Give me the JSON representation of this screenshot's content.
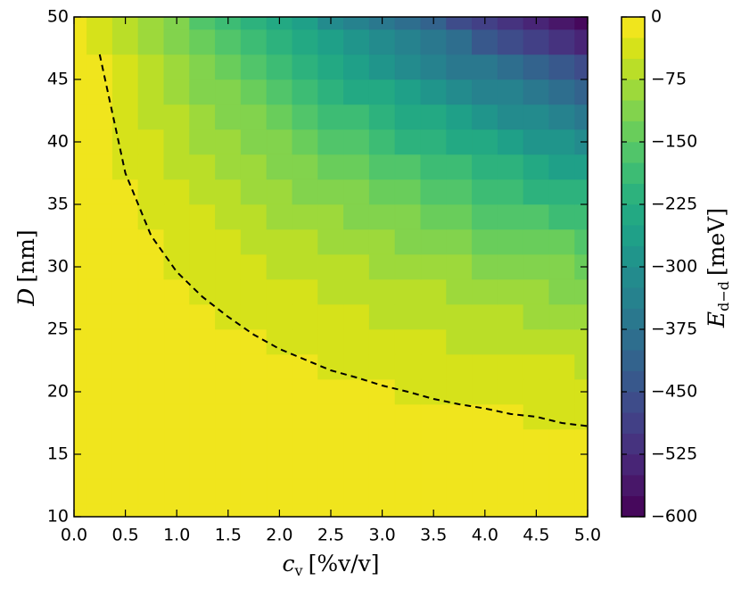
{
  "chart_data": {
    "type": "contourf",
    "xlabel": {
      "symbol": "c",
      "subscript": "v",
      "unit": "[%v/v]"
    },
    "ylabel": {
      "symbol": "D",
      "unit": "[nm]"
    },
    "colorbar_label": {
      "symbol": "E",
      "subscript": "d−d",
      "unit": "[meV]"
    },
    "xlim": [
      0,
      5
    ],
    "ylim": [
      10,
      50
    ],
    "xticks": [
      {
        "value": 0,
        "label": "0.0"
      },
      0.5,
      {
        "value": 1,
        "label": "1.0"
      },
      1.5,
      {
        "value": 2,
        "label": "2.0"
      },
      2.5,
      {
        "value": 3,
        "label": "3.0"
      },
      3.5,
      {
        "value": 4,
        "label": "4.0"
      },
      4.5,
      {
        "value": 5,
        "label": "5.0"
      }
    ],
    "yticks": [
      10,
      15,
      20,
      25,
      30,
      35,
      40,
      45,
      50
    ],
    "colorbar_ticks": [
      {
        "value": -600,
        "label": "−600"
      },
      {
        "value": -525,
        "label": "−525"
      },
      {
        "value": -450,
        "label": "−450"
      },
      {
        "value": -375,
        "label": "−375"
      },
      {
        "value": -300,
        "label": "−300"
      },
      {
        "value": -225,
        "label": "−225"
      },
      {
        "value": -150,
        "label": "−150"
      },
      {
        "value": -75,
        "label": "−75"
      },
      0
    ],
    "levels": [
      -600,
      -575,
      -550,
      -525,
      -500,
      -475,
      -450,
      -425,
      -400,
      -375,
      -350,
      -325,
      -300,
      -275,
      -250,
      -225,
      -200,
      -175,
      -150,
      -125,
      -100,
      -75,
      -50,
      -25,
      0
    ],
    "colors": [
      "#46085c",
      "#481769",
      "#482576",
      "#46337f",
      "#424086",
      "#3e4c8a",
      "#38588c",
      "#33638d",
      "#2e6e8e",
      "#2a788e",
      "#26828e",
      "#238b8d",
      "#20958b",
      "#1fa088",
      "#23a983",
      "#2db27d",
      "#3dbc74",
      "#51c56a",
      "#69cd5b",
      "#82d34d",
      "#9dd93b",
      "#bade28",
      "#d6e21a",
      "#f0e51d"
    ],
    "contour_line_level": -25,
    "x": [
      0,
      0.25,
      0.5,
      0.75,
      1,
      1.25,
      1.5,
      1.75,
      2,
      2.25,
      2.5,
      2.75,
      3,
      3.25,
      3.5,
      3.75,
      4,
      4.25,
      4.5,
      4.75,
      5
    ],
    "y": [
      10,
      12,
      14,
      16,
      18,
      20,
      22,
      24,
      26,
      28,
      30,
      32,
      34,
      36,
      38,
      40,
      42,
      44,
      46,
      48,
      50
    ],
    "z": [
      [
        0,
        0,
        0,
        -1,
        -1,
        -1,
        -1,
        -2,
        -2,
        -2,
        -2,
        -3,
        -3,
        -3,
        -3,
        -4,
        -4,
        -4,
        -4,
        -5,
        -5
      ],
      [
        0,
        0,
        -1,
        -1,
        -2,
        -2,
        -2,
        -3,
        -3,
        -4,
        -4,
        -5,
        -5,
        -5,
        -6,
        -6,
        -7,
        -7,
        -7,
        -8,
        -8
      ],
      [
        0,
        -1,
        -1,
        -2,
        -3,
        -3,
        -4,
        -5,
        -5,
        -6,
        -7,
        -7,
        -8,
        -9,
        -9,
        -10,
        -11,
        -11,
        -12,
        -13,
        -13
      ],
      [
        0,
        -1,
        -2,
        -3,
        -4,
        -5,
        -6,
        -7,
        -8,
        -9,
        -10,
        -11,
        -12,
        -13,
        -14,
        -15,
        -16,
        -17,
        -18,
        -19,
        -20
      ],
      [
        0,
        -1,
        -3,
        -4,
        -6,
        -7,
        -8,
        -10,
        -11,
        -13,
        -14,
        -15,
        -17,
        -18,
        -20,
        -21,
        -22,
        -24,
        -25,
        -27,
        -28
      ],
      [
        0,
        -2,
        -4,
        -6,
        -8,
        -10,
        -12,
        -13,
        -15,
        -17,
        -19,
        -21,
        -23,
        -25,
        -27,
        -29,
        -31,
        -33,
        -35,
        -36,
        -38
      ],
      [
        0,
        -3,
        -5,
        -8,
        -10,
        -13,
        -15,
        -18,
        -20,
        -23,
        -26,
        -28,
        -31,
        -33,
        -36,
        -38,
        -41,
        -43,
        -46,
        -49,
        -51
      ],
      [
        0,
        -3,
        -7,
        -10,
        -13,
        -17,
        -20,
        -23,
        -27,
        -30,
        -33,
        -36,
        -40,
        -43,
        -46,
        -50,
        -53,
        -56,
        -60,
        -63,
        -66
      ],
      [
        0,
        -4,
        -8,
        -13,
        -17,
        -21,
        -25,
        -30,
        -34,
        -38,
        -42,
        -46,
        -51,
        -55,
        -59,
        -63,
        -67,
        -72,
        -76,
        -80,
        -84
      ],
      [
        0,
        -5,
        -11,
        -16,
        -21,
        -26,
        -32,
        -37,
        -42,
        -47,
        -53,
        -58,
        -63,
        -68,
        -74,
        -79,
        -84,
        -90,
        -95,
        -100,
        -105
      ],
      [
        0,
        -6,
        -13,
        -19,
        -26,
        -32,
        -39,
        -45,
        -52,
        -58,
        -65,
        -71,
        -78,
        -84,
        -91,
        -97,
        -104,
        -110,
        -117,
        -123,
        -130
      ],
      [
        0,
        -8,
        -16,
        -24,
        -31,
        -39,
        -47,
        -55,
        -63,
        -71,
        -79,
        -86,
        -94,
        -102,
        -110,
        -118,
        -126,
        -134,
        -142,
        -149,
        -157
      ],
      [
        0,
        -9,
        -19,
        -28,
        -38,
        -47,
        -57,
        -66,
        -75,
        -85,
        -94,
        -104,
        -113,
        -123,
        -132,
        -141,
        -151,
        -160,
        -170,
        -179,
        -189
      ],
      [
        0,
        -11,
        -22,
        -34,
        -45,
        -56,
        -67,
        -78,
        -90,
        -101,
        -112,
        -123,
        -134,
        -146,
        -157,
        -168,
        -179,
        -190,
        -201,
        -213,
        -224
      ],
      [
        0,
        -13,
        -26,
        -39,
        -53,
        -66,
        -79,
        -92,
        -105,
        -118,
        -132,
        -145,
        -158,
        -171,
        -184,
        -197,
        -211,
        -224,
        -237,
        -250,
        -263
      ],
      [
        0,
        -15,
        -31,
        -46,
        -61,
        -77,
        -92,
        -107,
        -123,
        -138,
        -154,
        -169,
        -184,
        -200,
        -215,
        -230,
        -246,
        -261,
        -276,
        -292,
        -307
      ],
      [
        0,
        -18,
        -36,
        -53,
        -71,
        -89,
        -107,
        -124,
        -142,
        -160,
        -178,
        -196,
        -213,
        -231,
        -249,
        -267,
        -284,
        -302,
        -320,
        -338,
        -356
      ],
      [
        0,
        -20,
        -41,
        -61,
        -82,
        -102,
        -123,
        -143,
        -164,
        -184,
        -204,
        -225,
        -245,
        -266,
        -286,
        -307,
        -327,
        -347,
        -368,
        -388,
        -409
      ],
      [
        0,
        -23,
        -47,
        -70,
        -93,
        -117,
        -140,
        -163,
        -187,
        -210,
        -234,
        -257,
        -280,
        -304,
        -327,
        -350,
        -374,
        -397,
        -420,
        -444,
        -467
      ],
      [
        0,
        -27,
        -53,
        -80,
        -106,
        -133,
        -159,
        -186,
        -212,
        -239,
        -265,
        -292,
        -318,
        -345,
        -371,
        -398,
        -425,
        -451,
        -478,
        -504,
        -531
      ],
      [
        0,
        -30,
        -60,
        -90,
        -120,
        -150,
        -180,
        -210,
        -240,
        -270,
        -300,
        -330,
        -360,
        -390,
        -420,
        -450,
        -480,
        -510,
        -540,
        -570,
        -600
      ]
    ]
  }
}
